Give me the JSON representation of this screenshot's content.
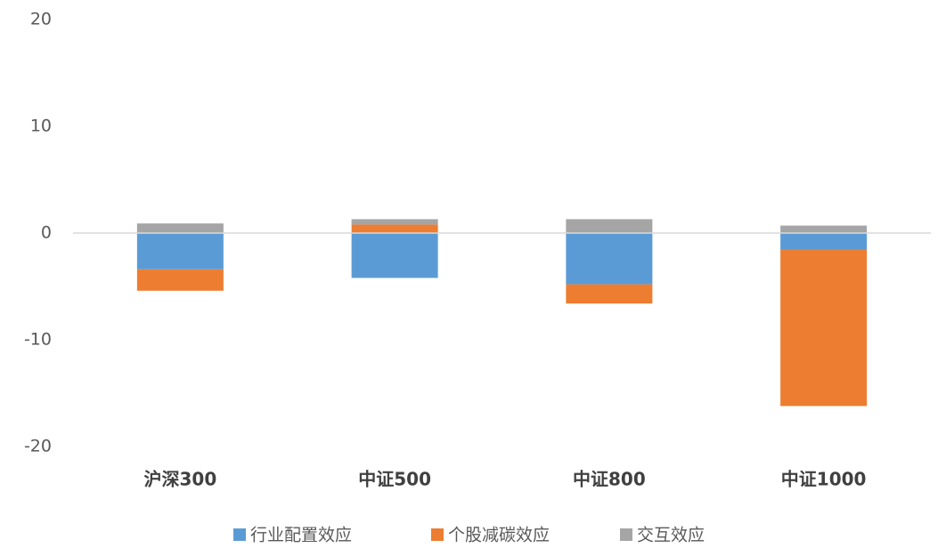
{
  "chart_data": {
    "type": "stacked-bar",
    "categories": [
      "沪深300",
      "中证500",
      "中证800",
      "中证1000"
    ],
    "series": [
      {
        "name": "行业配置效应",
        "color": "#5b9bd5",
        "values": [
          -3.4,
          -4.2,
          -4.8,
          -1.5
        ]
      },
      {
        "name": "个股减碳效应",
        "color": "#ed7d31",
        "values": [
          -2.0,
          0.8,
          -1.8,
          -14.7
        ]
      },
      {
        "name": "交互效应",
        "color": "#a5a5a5",
        "values": [
          0.9,
          0.5,
          1.3,
          0.7
        ]
      }
    ],
    "ylim": [
      -20,
      20
    ],
    "yticks": [
      -20,
      -10,
      0,
      10,
      20
    ],
    "grid": false,
    "legend": "bottom"
  }
}
